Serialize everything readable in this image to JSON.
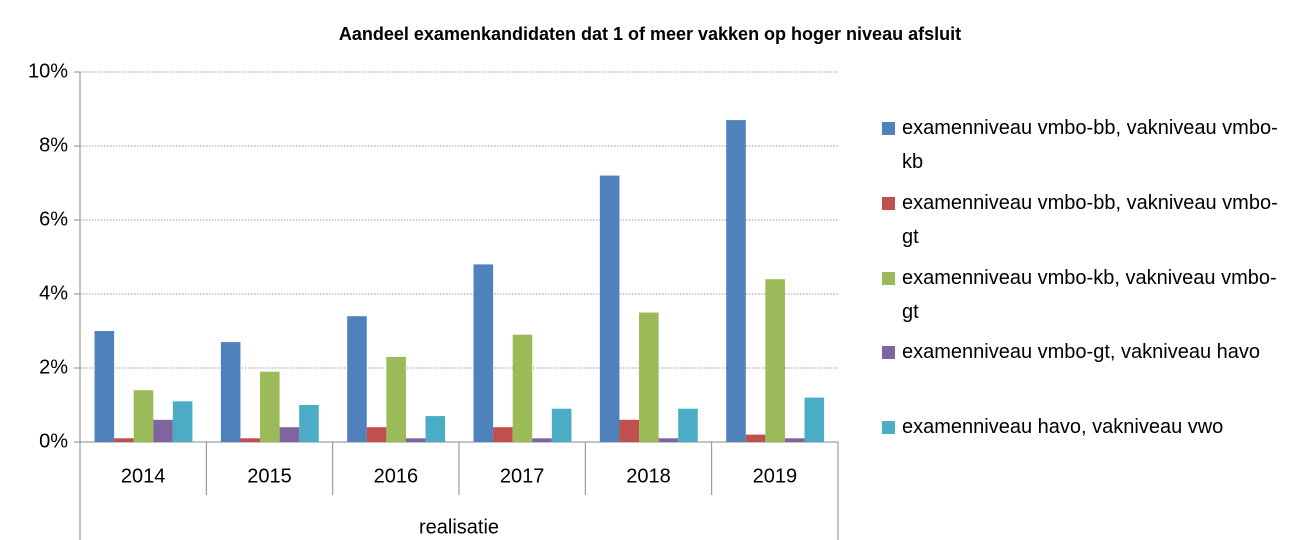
{
  "chart_data": {
    "type": "bar",
    "title": "Aandeel examenkandidaten dat 1 of meer vakken op hoger niveau afsluit",
    "categories": [
      "2014",
      "2015",
      "2016",
      "2017",
      "2018",
      "2019"
    ],
    "group_label": "realisatie",
    "series": [
      {
        "name": "examenniveau vmbo-bb, vakniveau vmbo-kb",
        "color": "#4f81bd",
        "values": [
          3.0,
          2.7,
          3.4,
          4.8,
          7.2,
          8.7
        ]
      },
      {
        "name": "examenniveau vmbo-bb, vakniveau vmbo-gt",
        "color": "#c0504d",
        "values": [
          0.1,
          0.1,
          0.4,
          0.4,
          0.6,
          0.2
        ]
      },
      {
        "name": "examenniveau vmbo-kb, vakniveau vmbo-gt",
        "color": "#9bbb59",
        "values": [
          1.4,
          1.9,
          2.3,
          2.9,
          3.5,
          4.4
        ]
      },
      {
        "name": "examenniveau vmbo-gt, vakniveau havo",
        "color": "#8064a2",
        "values": [
          0.6,
          0.4,
          0.1,
          0.1,
          0.1,
          0.1
        ]
      },
      {
        "name": "examenniveau havo, vakniveau vwo",
        "color": "#4bacc6",
        "values": [
          1.1,
          1.0,
          0.7,
          0.9,
          0.9,
          1.2
        ]
      }
    ],
    "ylim": [
      0,
      10
    ],
    "yticks": [
      {
        "value": 0,
        "label": "0%"
      },
      {
        "value": 2,
        "label": "2%"
      },
      {
        "value": 4,
        "label": "4%"
      },
      {
        "value": 6,
        "label": "6%"
      },
      {
        "value": 8,
        "label": "8%"
      },
      {
        "value": 10,
        "label": "10%"
      }
    ],
    "grid": true,
    "legend": "right"
  }
}
